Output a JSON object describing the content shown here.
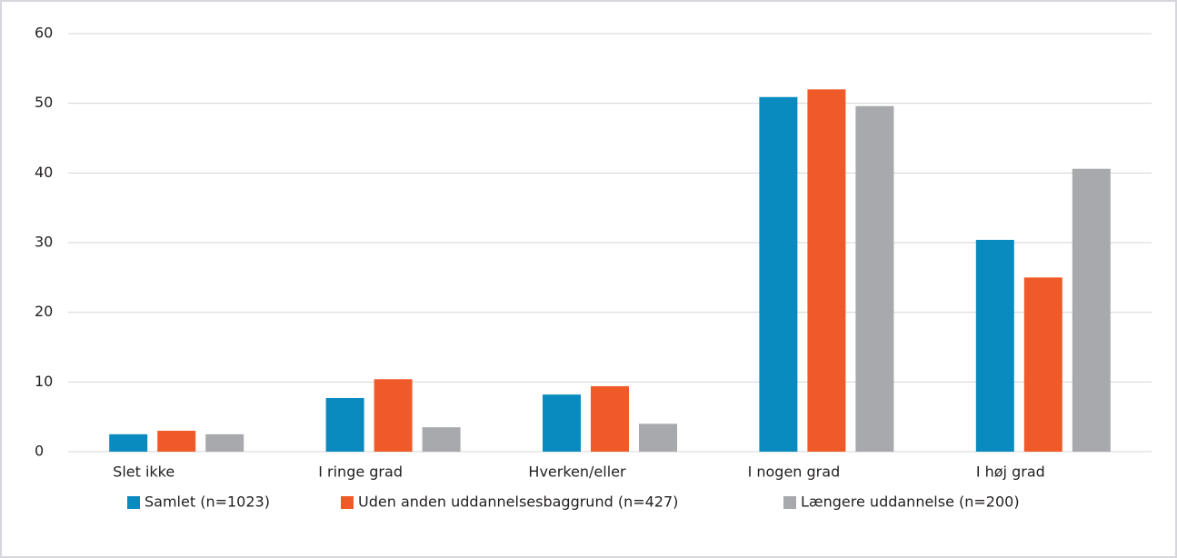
{
  "chart_data": {
    "type": "bar",
    "categories": [
      "Slet ikke",
      "I ringe grad",
      "Hverken/eller",
      "I nogen grad",
      "I høj grad"
    ],
    "series": [
      {
        "name": "Samlet (n=1023)",
        "color": "#0a8bbf",
        "values": [
          2.5,
          7.7,
          8.2,
          50.9,
          30.4
        ]
      },
      {
        "name": "Uden anden uddannelsesbaggrund (n=427)",
        "color": "#f05a28",
        "values": [
          3.0,
          10.4,
          9.4,
          52.0,
          25.0
        ]
      },
      {
        "name": "Længere uddannelse (n=200)",
        "color": "#a7a9ac",
        "values": [
          2.5,
          3.5,
          4.0,
          49.6,
          40.6
        ]
      }
    ],
    "ylim": [
      0,
      60
    ],
    "yticks": [
      0,
      10,
      20,
      30,
      40,
      50,
      60
    ],
    "grid": true,
    "legend": "bottom"
  }
}
